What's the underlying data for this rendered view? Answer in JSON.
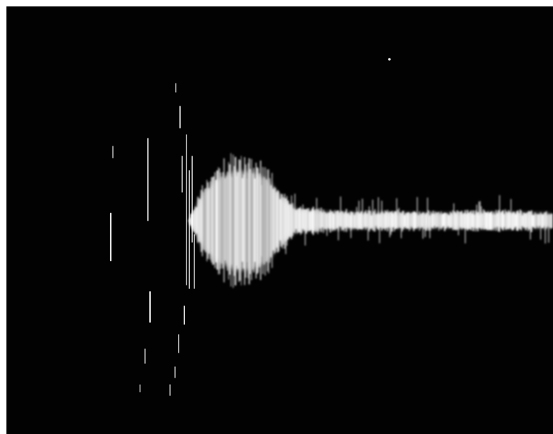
{
  "image": {
    "subject": "oscilloscope-trace-photograph",
    "colors": {
      "border": "#ffffff",
      "screen": "#020202",
      "trace_core": "#ffffff",
      "trace_shadow": "#bfbfbf"
    },
    "trace": {
      "burst_envelope": [
        {
          "t": 0.0,
          "a": 0.0
        },
        {
          "t": 0.33,
          "a": 0.0
        },
        {
          "t": 0.34,
          "a": 0.12
        },
        {
          "t": 0.36,
          "a": 0.55
        },
        {
          "t": 0.39,
          "a": 0.85
        },
        {
          "t": 0.42,
          "a": 1.0
        },
        {
          "t": 0.45,
          "a": 0.98
        },
        {
          "t": 0.48,
          "a": 0.8
        },
        {
          "t": 0.5,
          "a": 0.48
        },
        {
          "t": 0.53,
          "a": 0.22
        },
        {
          "t": 0.6,
          "a": 0.16
        },
        {
          "t": 0.7,
          "a": 0.15
        },
        {
          "t": 0.8,
          "a": 0.14
        },
        {
          "t": 0.9,
          "a": 0.16
        },
        {
          "t": 1.0,
          "a": 0.14
        }
      ]
    }
  }
}
